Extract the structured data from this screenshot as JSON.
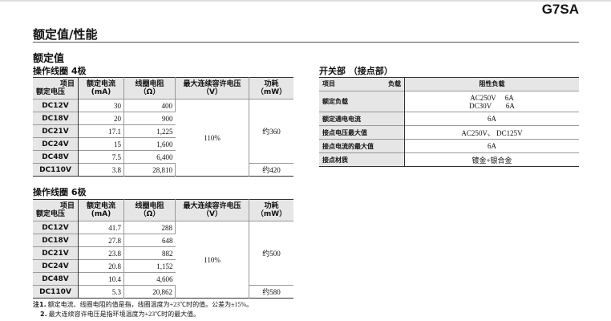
{
  "model": "G7SA",
  "title": "额定值/性能",
  "section": "额定值",
  "corner": {
    "top": "项目",
    "bottom": "额定电压"
  },
  "columns": {
    "current": "额定电流",
    "current_unit": "(mA)",
    "resistance": "线圈电阻",
    "resistance_unit": "（Ω）",
    "maxv": "最大连续容许电压",
    "maxv_unit": "（V）",
    "power": "功耗",
    "power_unit": "（mW）"
  },
  "coil4": {
    "title": "操作线圈 4极",
    "rows": [
      {
        "v": "DC12V",
        "i": "30",
        "r": "400"
      },
      {
        "v": "DC18V",
        "i": "20",
        "r": "900"
      },
      {
        "v": "DC21V",
        "i": "17.1",
        "r": "1,225"
      },
      {
        "v": "DC24V",
        "i": "15",
        "r": "1,600"
      },
      {
        "v": "DC48V",
        "i": "7.5",
        "r": "6,400"
      },
      {
        "v": "DC110V",
        "i": "3.8",
        "r": "28,810"
      }
    ],
    "maxv": "110%",
    "power_a": "约360",
    "power_b": "约420"
  },
  "coil6": {
    "title": "操作线圈 6极",
    "rows": [
      {
        "v": "DC12V",
        "i": "41.7",
        "r": "288"
      },
      {
        "v": "DC18V",
        "i": "27.8",
        "r": "648"
      },
      {
        "v": "DC21V",
        "i": "23.8",
        "r": "882"
      },
      {
        "v": "DC24V",
        "i": "20.8",
        "r": "1,152"
      },
      {
        "v": "DC48V",
        "i": "10.4",
        "r": "4,606"
      },
      {
        "v": "DC110V",
        "i": "5.3",
        "r": "20,862"
      }
    ],
    "maxv": "110%",
    "power_a": "约500",
    "power_b": "约580"
  },
  "switch": {
    "title": "开关部 （接点部）",
    "h_item": "项目",
    "h_load": "负载",
    "h_res": "阻性负载",
    "rows": [
      {
        "label": "额定负载",
        "value": "AC250V　 6A",
        "value2": "DC30V　　6A"
      },
      {
        "label": "额定通电电流",
        "value": "6A"
      },
      {
        "label": "接点电压最大值",
        "value": "AC250V、 DC125V"
      },
      {
        "label": "接点电流的最大值",
        "value": "6A"
      },
      {
        "label": "接点材质",
        "value": "镀金+银合金"
      }
    ]
  },
  "notes": [
    {
      "num": "注1.",
      "text": "额定电流、线圈电阻的值是指，线圈温度为+23℃时的值。公差为±15%。"
    },
    {
      "num": "2.",
      "text": "最大连续容许电压是指环境温度为+23℃时的最大值。"
    }
  ]
}
